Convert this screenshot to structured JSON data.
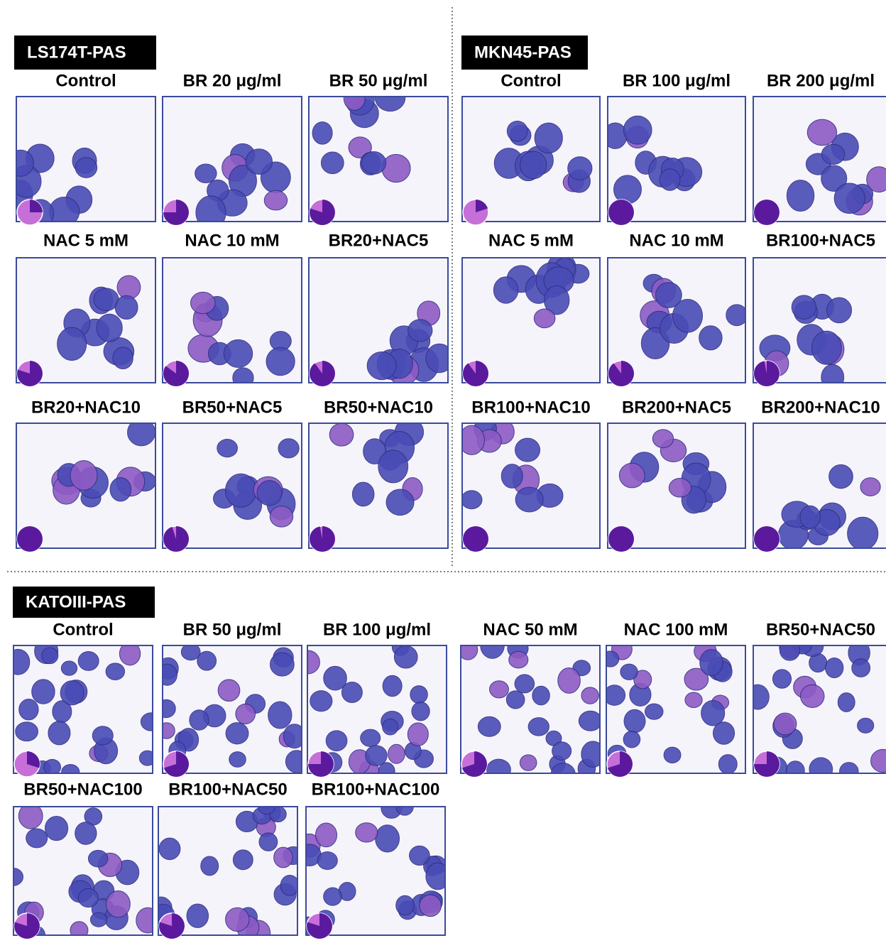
{
  "sections": [
    {
      "title": "LS174T-PAS",
      "panels": [
        {
          "label": "Control",
          "pie": 25
        },
        {
          "label": "BR 20 μg/ml",
          "pie": 75
        },
        {
          "label": "BR 50 μg/ml",
          "pie": 80
        },
        {
          "label": "NAC 5 mM",
          "pie": 80
        },
        {
          "label": "NAC 10 mM",
          "pie": 85
        },
        {
          "label": "BR20+NAC5",
          "pie": 90
        },
        {
          "label": "BR20+NAC10",
          "pie": 100
        },
        {
          "label": "BR50+NAC5",
          "pie": 95
        },
        {
          "label": "BR50+NAC10",
          "pie": 97
        }
      ]
    },
    {
      "title": "MKN45-PAS",
      "panels": [
        {
          "label": "Control",
          "pie": 20
        },
        {
          "label": "BR 100 μg/ml",
          "pie": 100
        },
        {
          "label": "BR 200 μg/ml",
          "pie": 100
        },
        {
          "label": "NAC 5 mM",
          "pie": 90
        },
        {
          "label": "NAC 10 mM",
          "pie": 90
        },
        {
          "label": "BR100+NAC5",
          "pie": 97
        },
        {
          "label": "BR100+NAC10",
          "pie": 100
        },
        {
          "label": "BR200+NAC5",
          "pie": 100
        },
        {
          "label": "BR200+NAC10",
          "pie": 100
        }
      ]
    },
    {
      "title": "KATOIII-PAS",
      "panels": [
        {
          "label": "Control",
          "pie": 30
        },
        {
          "label": "BR 50 μg/ml",
          "pie": 70
        },
        {
          "label": "BR 100 μg/ml",
          "pie": 75
        },
        {
          "label": "NAC 50 mM",
          "pie": 70
        },
        {
          "label": "NAC 100 mM",
          "pie": 70
        },
        {
          "label": "BR50+NAC50",
          "pie": 75
        },
        {
          "label": "BR50+NAC100",
          "pie": 80
        },
        {
          "label": "BR100+NAC50",
          "pie": 80
        },
        {
          "label": "BR100+NAC100",
          "pie": 80
        }
      ]
    }
  ]
}
